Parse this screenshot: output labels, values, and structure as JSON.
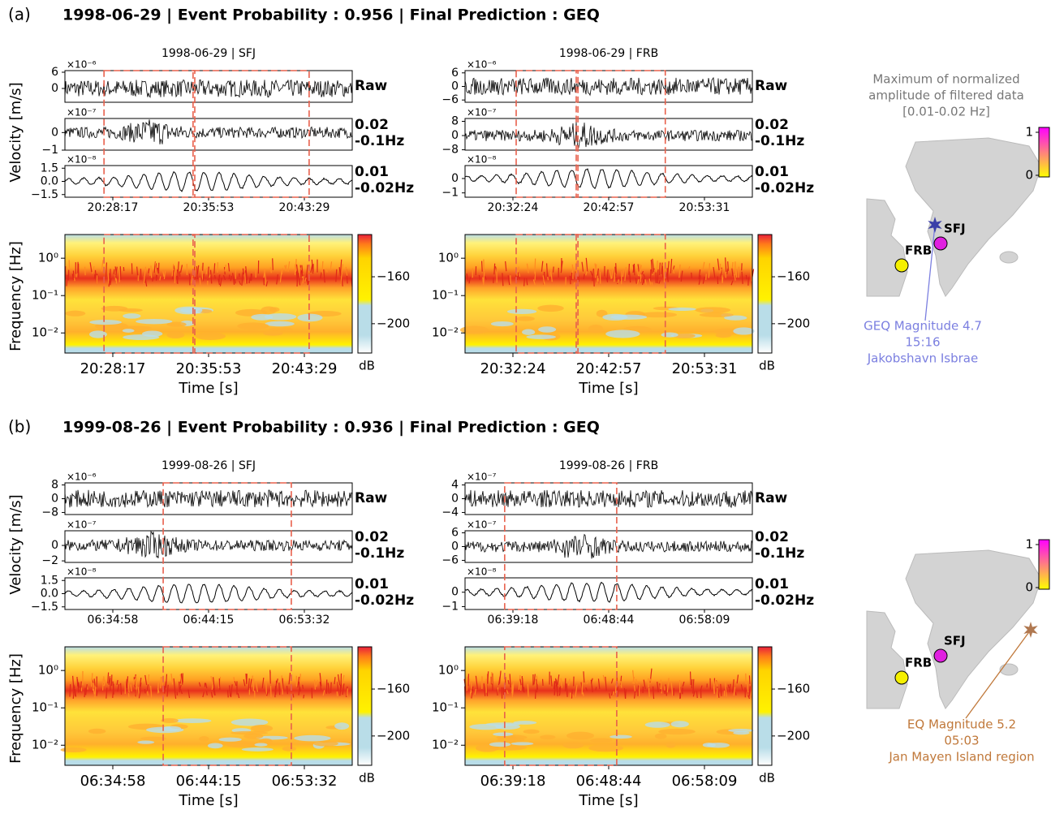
{
  "panels": [
    {
      "label": "(a)",
      "title": "1998-06-29 | Event Probability : 0.956 | Final Prediction : GEQ",
      "velocity_label": "Velocity [m/s]",
      "frequency_label": "Frequency [Hz]",
      "stations": [
        {
          "title": "1998-06-29 | SFJ",
          "time_ticks": [
            "20:28:17",
            "20:35:53",
            "20:43:29"
          ],
          "xlabel": "Time [s]",
          "traces": [
            {
              "label": [
                "Raw"
              ],
              "exponent": "×10⁻⁶",
              "ylim": [
                -5.1,
                6.6
              ],
              "yticks": [
                6,
                0
              ]
            },
            {
              "label": [
                "0.02",
                "-0.1Hz"
              ],
              "exponent": "×10⁻⁷",
              "ylim": [
                -1,
                0.8
              ],
              "yticks": [
                0,
                {
                  "value": -1,
                  "label": "−1"
                }
              ]
            },
            {
              "label": [
                "0.01",
                "-0.02Hz"
              ],
              "exponent": "×10⁻⁸",
              "ylim": [
                -1.8,
                1.8
              ],
              "yticks": [
                1.5,
                {
                  "value": 0,
                  "label": "0.0"
                },
                {
                  "value": -1.5,
                  "label": "−1.5"
                }
              ]
            }
          ],
          "spectrogram": {
            "log": true,
            "ylim": [
              0.0029,
              4.3
            ],
            "yticks": [
              {
                "value": 1,
                "label": "10⁰"
              },
              {
                "value": 0.1,
                "label": "10⁻¹"
              },
              {
                "value": 0.01,
                "label": "10⁻²"
              }
            ],
            "clim": [
              -225,
              -124
            ],
            "cticks": [
              {
                "value": -160,
                "label": "−160"
              },
              {
                "value": -200,
                "label": "−200"
              }
            ],
            "clabel": "dB"
          }
        },
        {
          "title": "1998-06-29 | FRB",
          "time_ticks": [
            "20:32:24",
            "20:42:57",
            "20:53:31"
          ],
          "xlabel": "Time [s]",
          "traces": [
            {
              "label": [
                "Raw"
              ],
              "exponent": "×10⁻⁶",
              "ylim": [
                -7,
                7
              ],
              "yticks": [
                6,
                0,
                {
                  "value": -6,
                  "label": "−6"
                }
              ]
            },
            {
              "label": [
                "0.02",
                "-0.1Hz"
              ],
              "exponent": "×10⁻⁷",
              "ylim": [
                -8.2,
                9.6
              ],
              "yticks": [
                8,
                0,
                {
                  "value": -8,
                  "label": "−8"
                }
              ]
            },
            {
              "label": [
                "0.01",
                "-0.02Hz"
              ],
              "exponent": "×10⁻⁸",
              "ylim": [
                -1.3,
                0.9
              ],
              "yticks": [
                0,
                {
                  "value": -1,
                  "label": "−1"
                }
              ]
            }
          ],
          "spectrogram": {
            "log": true,
            "ylim": [
              0.0029,
              4.3
            ],
            "yticks": [
              {
                "value": 1,
                "label": "10⁰"
              },
              {
                "value": 0.1,
                "label": "10⁻¹"
              },
              {
                "value": 0.01,
                "label": "10⁻²"
              }
            ],
            "clim": [
              -225,
              -124
            ],
            "cticks": [
              {
                "value": -160,
                "label": "−160"
              },
              {
                "value": -200,
                "label": "−200"
              }
            ],
            "clabel": "dB"
          }
        }
      ],
      "map": {
        "title": [
          "Maximum of normalized",
          "amplitude of filtered data",
          "[0.01-0.02 Hz]"
        ],
        "clim": [
          0,
          1
        ],
        "cticks": [
          1,
          0
        ],
        "stations": [
          "SFJ",
          "FRB"
        ],
        "annotation": [
          "GEQ Magnitude 4.7",
          "15:16",
          "Jakobshavn Isbrae"
        ]
      }
    },
    {
      "label": "(b)",
      "title": "1999-08-26 | Event Probability : 0.936 | Final Prediction : GEQ",
      "velocity_label": "Velocity [m/s]",
      "frequency_label": "Frequency [Hz]",
      "stations": [
        {
          "title": "1999-08-26 | SFJ",
          "time_ticks": [
            "06:34:58",
            "06:44:15",
            "06:53:32"
          ],
          "xlabel": "Time [s]",
          "traces": [
            {
              "label": [
                "Raw"
              ],
              "exponent": "×10⁻⁶",
              "ylim": [
                -9.2,
                9.2
              ],
              "yticks": [
                8,
                0,
                {
                  "value": -8,
                  "label": "−8"
                }
              ]
            },
            {
              "label": [
                "0.02",
                "-0.1Hz"
              ],
              "exponent": "×10⁻⁷",
              "ylim": [
                -2.2,
                1.9
              ],
              "yticks": [
                0,
                {
                  "value": -2,
                  "label": "−2"
                }
              ]
            },
            {
              "label": [
                "0.01",
                "-0.02Hz"
              ],
              "exponent": "×10⁻⁸",
              "ylim": [
                -1.8,
                1.8
              ],
              "yticks": [
                1.5,
                {
                  "value": 0,
                  "label": "0.0"
                },
                {
                  "value": -1.5,
                  "label": "−1.5"
                }
              ]
            }
          ],
          "spectrogram": {
            "log": true,
            "ylim": [
              0.0029,
              4.3
            ],
            "yticks": [
              {
                "value": 1,
                "label": "10⁰"
              },
              {
                "value": 0.1,
                "label": "10⁻¹"
              },
              {
                "value": 0.01,
                "label": "10⁻²"
              }
            ],
            "clim": [
              -225,
              -124
            ],
            "cticks": [
              {
                "value": -160,
                "label": "−160"
              },
              {
                "value": -200,
                "label": "−200"
              }
            ],
            "clabel": "dB"
          }
        },
        {
          "title": "1999-08-26 | FRB",
          "time_ticks": [
            "06:39:18",
            "06:48:44",
            "06:58:09"
          ],
          "xlabel": "Time [s]",
          "traces": [
            {
              "label": [
                "Raw"
              ],
              "exponent": "×10⁻⁷",
              "ylim": [
                -4.6,
                4.6
              ],
              "yticks": [
                4,
                0,
                {
                  "value": -4,
                  "label": "−4"
                }
              ]
            },
            {
              "label": [
                "0.02",
                "-0.1Hz"
              ],
              "exponent": "×10⁻⁷",
              "ylim": [
                -6.9,
                6.9
              ],
              "yticks": [
                6,
                0,
                {
                  "value": -6,
                  "label": "−6"
                }
              ]
            },
            {
              "label": [
                "0.01",
                "-0.02Hz"
              ],
              "exponent": "×10⁻⁸",
              "ylim": [
                -1.2,
                1.0
              ],
              "yticks": [
                0,
                {
                  "value": -1,
                  "label": "−1"
                }
              ]
            }
          ],
          "spectrogram": {
            "log": true,
            "ylim": [
              0.0029,
              4.3
            ],
            "yticks": [
              {
                "value": 1,
                "label": "10⁰"
              },
              {
                "value": 0.1,
                "label": "10⁻¹"
              },
              {
                "value": 0.01,
                "label": "10⁻²"
              }
            ],
            "clim": [
              -225,
              -124
            ],
            "cticks": [
              {
                "value": -160,
                "label": "−160"
              },
              {
                "value": -200,
                "label": "−200"
              }
            ],
            "clabel": "dB"
          }
        }
      ],
      "map": {
        "title": [],
        "clim": [
          0,
          1
        ],
        "cticks": [
          1,
          0
        ],
        "stations": [
          "SFJ",
          "FRB"
        ],
        "annotation": [
          "EQ Magnitude 5.2",
          "05:03",
          "Jan Mayen Island region"
        ]
      }
    }
  ]
}
